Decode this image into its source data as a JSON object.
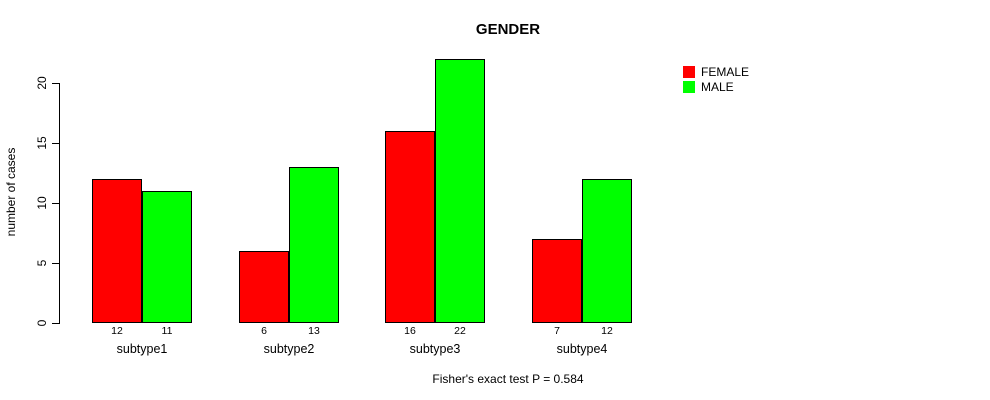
{
  "chart_data": {
    "type": "bar",
    "title": "GENDER",
    "xlabel": "",
    "ylabel": "number of cases",
    "categories": [
      "subtype1",
      "subtype2",
      "subtype3",
      "subtype4"
    ],
    "series": [
      {
        "name": "FEMALE",
        "color": "#ff0000",
        "values": [
          12,
          6,
          16,
          7
        ]
      },
      {
        "name": "MALE",
        "color": "#00ff00",
        "values": [
          11,
          13,
          22,
          12
        ]
      }
    ],
    "yticks": [
      0,
      5,
      10,
      15,
      20
    ],
    "ylim": [
      0,
      22
    ],
    "grid": false,
    "legend_position": "top-right",
    "show_value_labels": true,
    "bar_border_color": "#000000",
    "footer": "Fisher's exact test P = 0.584"
  }
}
